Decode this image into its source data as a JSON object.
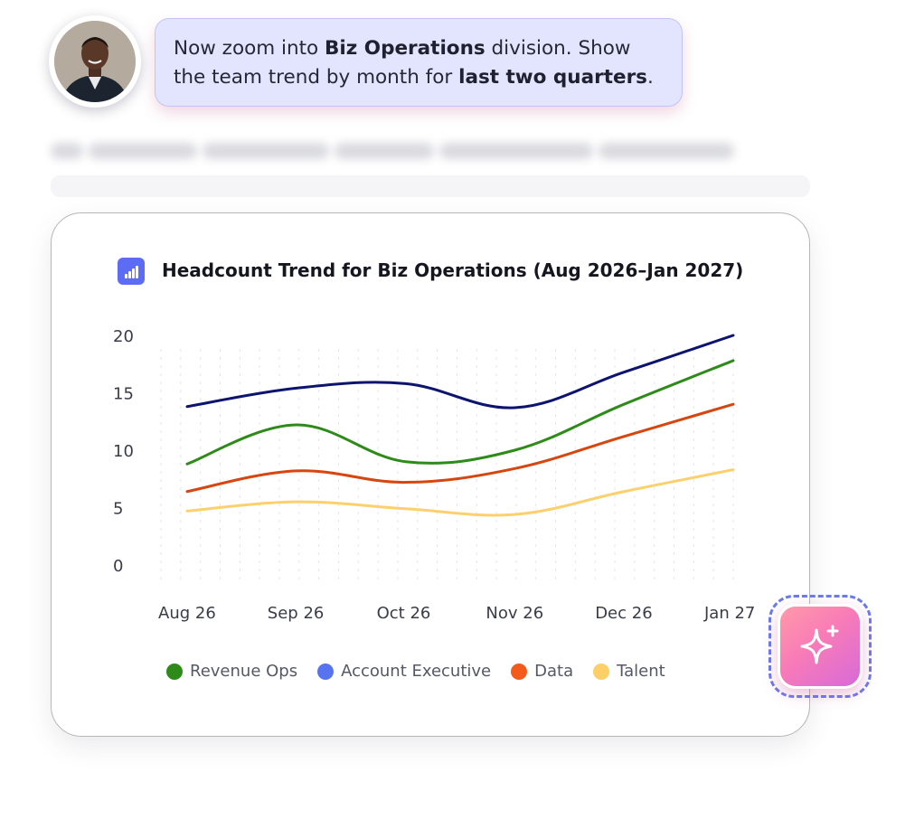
{
  "prompt": {
    "part1": "Now zoom into ",
    "bold1": "Biz Operations",
    "part2": " division. Show the team trend by month for ",
    "bold2": "last two quarters",
    "part3": "."
  },
  "icons": {
    "avatar": "user-avatar-photo",
    "chart": "bar-chart-icon",
    "ai": "sparkle-icon"
  },
  "chart_data": {
    "type": "line",
    "title": "Headcount Trend for Biz Operations (Aug 2026–Jan 2027)",
    "xlabel": "",
    "ylabel": "",
    "categories": [
      "Aug 26",
      "Sep 26",
      "Oct 26",
      "Nov 26",
      "Dec 26",
      "Jan 27"
    ],
    "ylim": [
      0,
      20
    ],
    "yticks": [
      "0",
      "5",
      "10",
      "15",
      "20"
    ],
    "grid": "vertical-dashed",
    "legend_position": "bottom",
    "series": [
      {
        "name": "Revenue Ops",
        "color": "#2f8b19",
        "values": [
          8.8,
          12.2,
          9.0,
          10.0,
          14.0,
          17.8
        ]
      },
      {
        "name": "Account Executive",
        "color": "#0d1470",
        "legend_color": "#5873f0",
        "values": [
          13.8,
          15.4,
          15.8,
          13.7,
          16.8,
          20.0
        ]
      },
      {
        "name": "Data",
        "color": "#d6460e",
        "legend_color": "#f45a1c",
        "values": [
          6.4,
          8.2,
          7.2,
          8.4,
          11.2,
          14.0
        ]
      },
      {
        "name": "Talent",
        "color": "#fdd06e",
        "legend_color": "#fcd067",
        "values": [
          4.7,
          5.5,
          4.9,
          4.4,
          6.4,
          8.3
        ]
      }
    ]
  }
}
